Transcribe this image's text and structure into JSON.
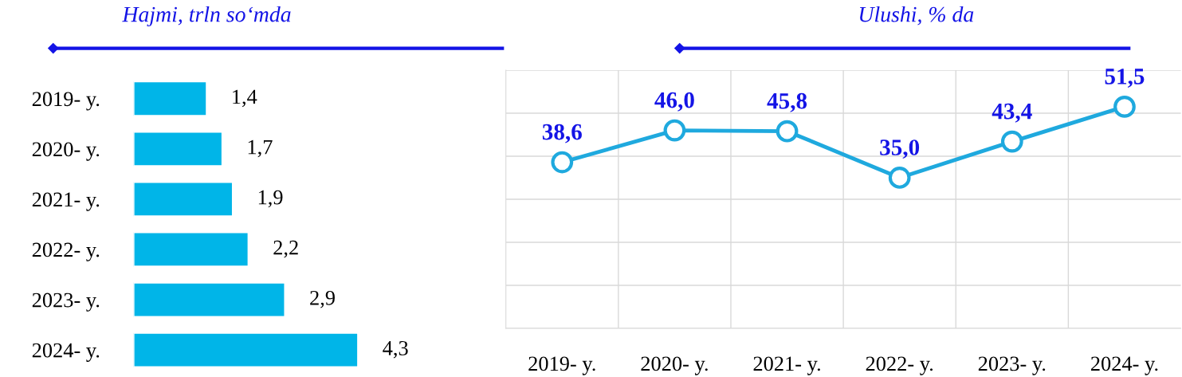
{
  "chart_data": [
    {
      "type": "bar",
      "orientation": "horizontal",
      "title": "Hajmi, trln so‘mda",
      "categories": [
        "2019- y.",
        "2020- y.",
        "2021- y.",
        "2022- y.",
        "2023- y.",
        "2024- y."
      ],
      "values": [
        1.4,
        1.7,
        1.9,
        2.2,
        2.9,
        4.3
      ],
      "value_labels": [
        "1,4",
        "1,7",
        "1,9",
        "2,2",
        "2,9",
        "4,3"
      ],
      "color": "#00b5e8",
      "tick_labels": "y"
    },
    {
      "type": "line",
      "title": "Ulushi, % da",
      "categories": [
        "2019- y.",
        "2020- y.",
        "2021- y.",
        "2022- y.",
        "2023- y.",
        "2024- y."
      ],
      "values": [
        38.6,
        46.0,
        45.8,
        35.0,
        43.4,
        51.5
      ],
      "value_labels": [
        "38,6",
        "46,0",
        "45,8",
        "35,0",
        "43,4",
        "51,5"
      ],
      "color": "#1fa9de",
      "marker": "circle",
      "line_style": "solid",
      "ylim": [
        0,
        60
      ],
      "yticks": [
        {
          "value": 0,
          "label": null
        },
        {
          "value": 10,
          "label": null
        },
        {
          "value": 20,
          "label": null
        },
        {
          "value": 30,
          "label": null
        },
        {
          "value": 40,
          "label": null
        },
        {
          "value": 50,
          "label": null
        },
        {
          "value": 60,
          "label": null
        }
      ],
      "tick_labels": "x",
      "grid": true,
      "legend": false
    }
  ]
}
